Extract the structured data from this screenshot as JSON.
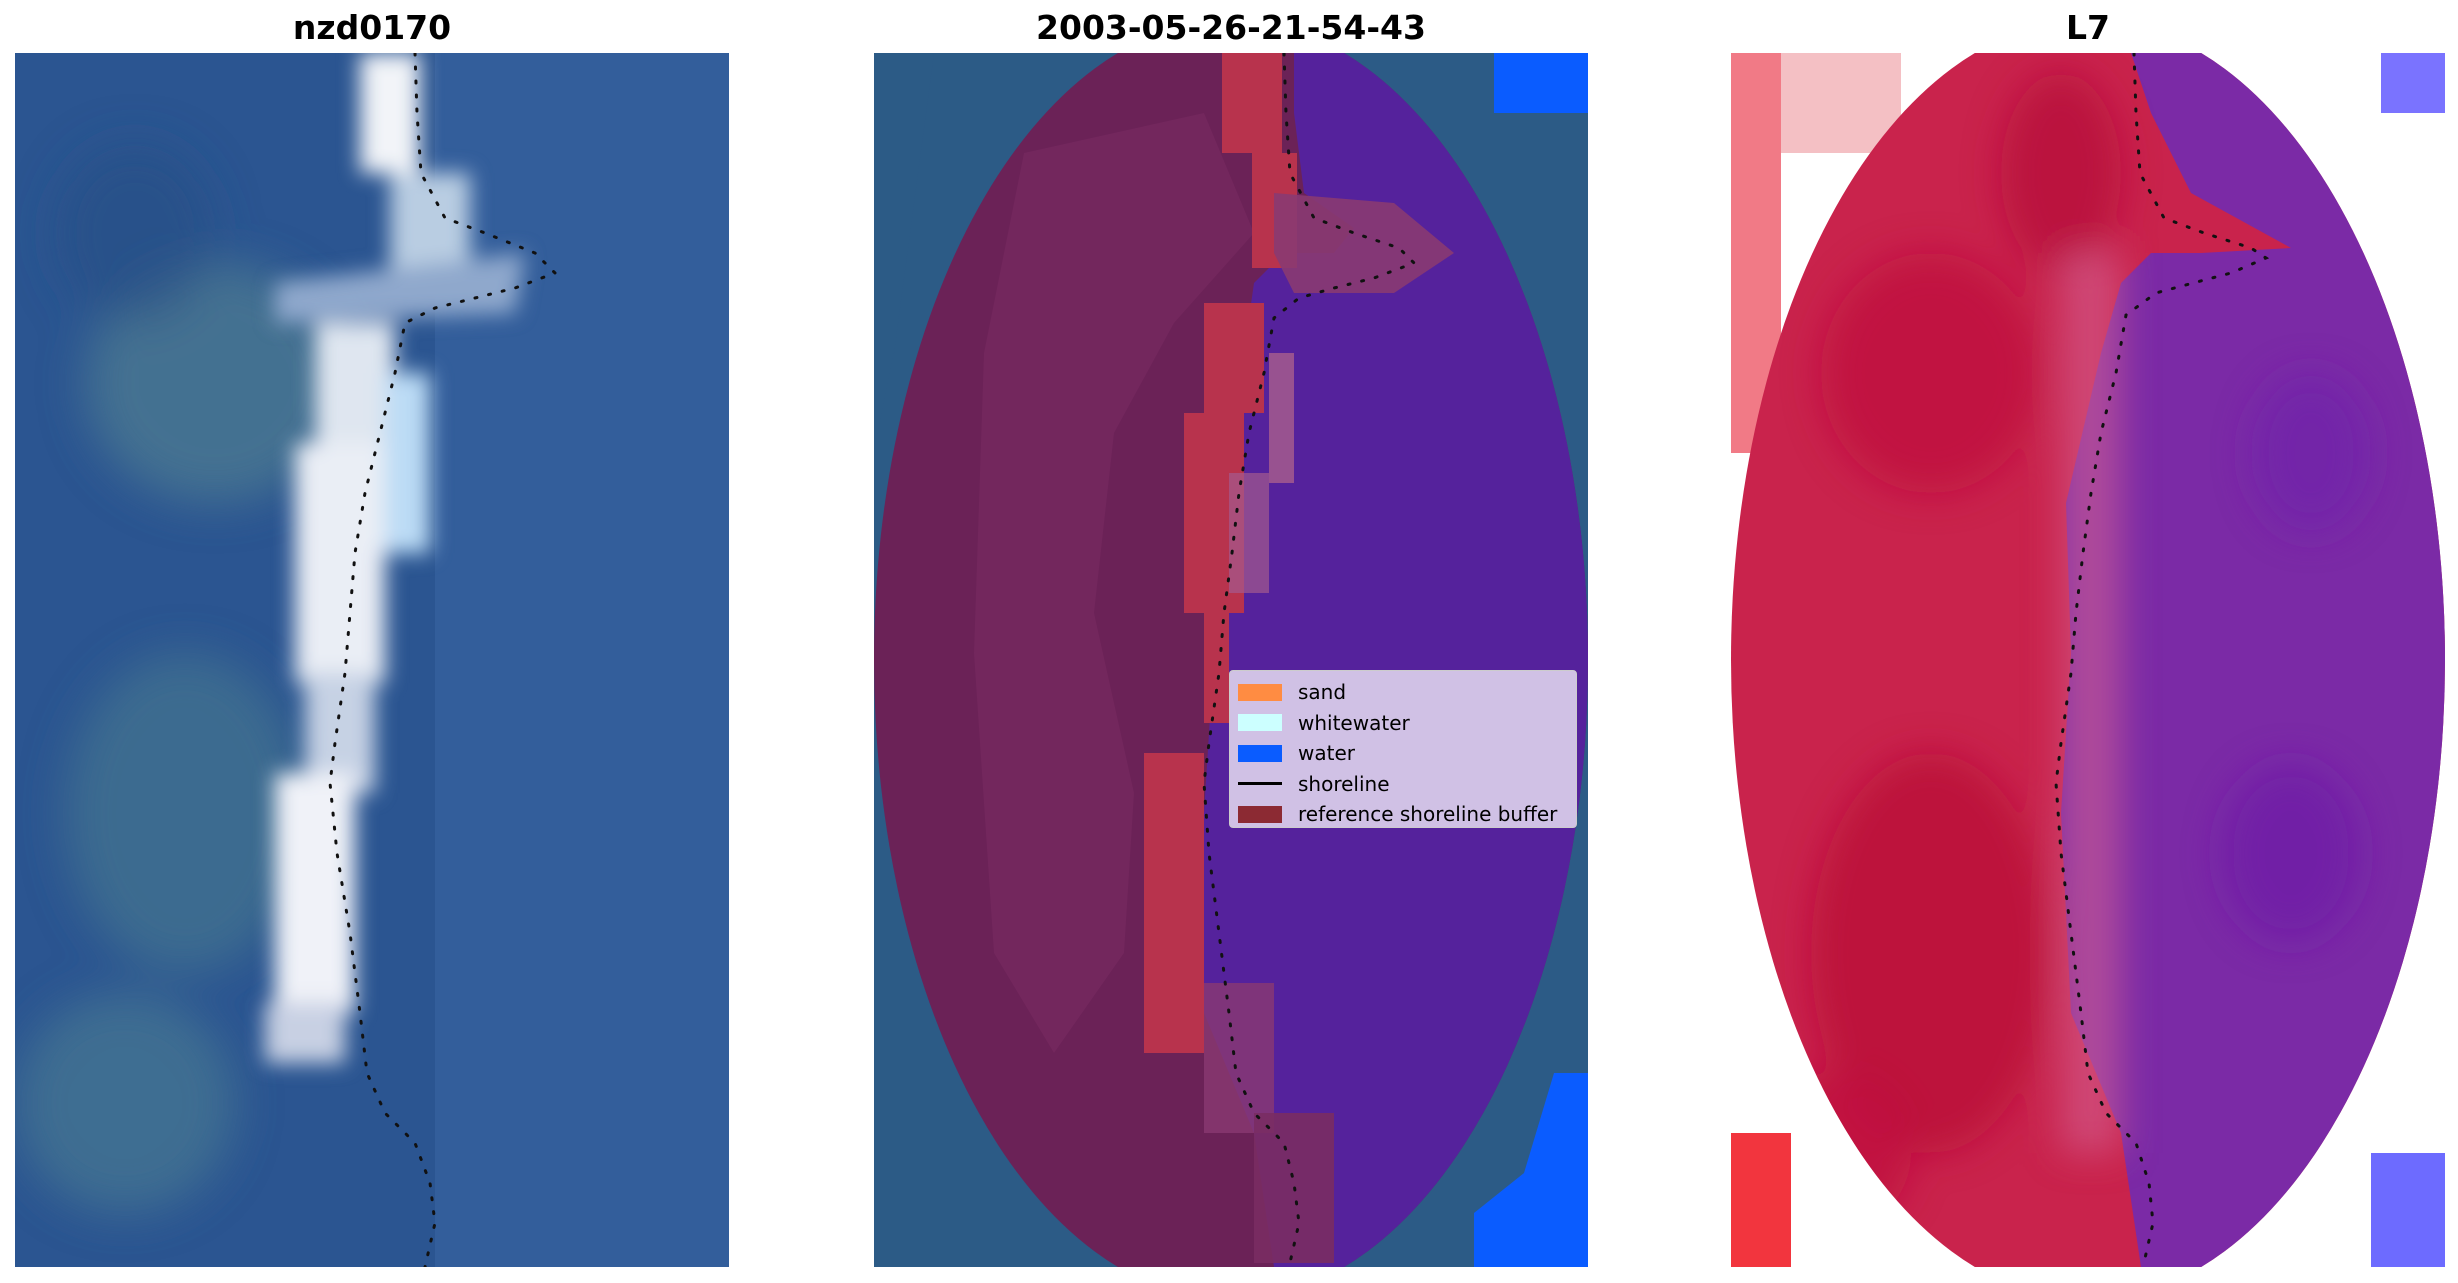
{
  "panels": [
    {
      "title": "nzd0170"
    },
    {
      "title": "2003-05-26-21-54-43"
    },
    {
      "title": "L7"
    }
  ],
  "legend": {
    "items": [
      {
        "label": "sand",
        "kind": "patch",
        "color": "#ff8c42"
      },
      {
        "label": "whitewater",
        "kind": "patch",
        "color": "#ccffff"
      },
      {
        "label": "water",
        "kind": "patch",
        "color": "#0a5cff"
      },
      {
        "label": "shoreline",
        "kind": "line",
        "color": "#000000"
      },
      {
        "label": "reference shoreline buffer",
        "kind": "patch",
        "color": "#8c2a33"
      }
    ]
  },
  "colors": {
    "ocean_blue": "#2e5590",
    "land_maroon": "#6e2358",
    "water_purple": "#55239a",
    "buffer_red": "#b83b55",
    "water_mask": "#0a5cff",
    "index_red": "#c21c48",
    "index_purple": "#7a2aa8"
  }
}
